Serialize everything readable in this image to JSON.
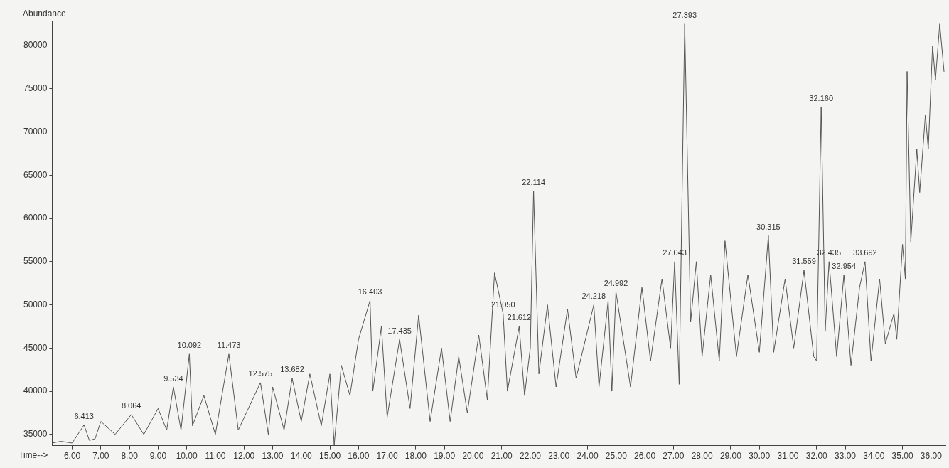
{
  "chart_data": {
    "type": "line",
    "xlabel": "Time-->",
    "ylabel": "Abundance",
    "x": [
      5.3,
      5.6,
      6.0,
      6.413,
      6.6,
      6.8,
      7.0,
      7.5,
      8.064,
      8.5,
      9.0,
      9.3,
      9.534,
      9.8,
      10.092,
      10.2,
      10.6,
      11.0,
      11.473,
      11.8,
      12.575,
      12.85,
      13.0,
      13.4,
      13.682,
      14.0,
      14.3,
      14.7,
      15.0,
      15.15,
      15.4,
      15.7,
      16.0,
      16.403,
      16.5,
      16.8,
      17.0,
      17.435,
      17.8,
      18.1,
      18.5,
      18.9,
      19.2,
      19.5,
      19.8,
      20.2,
      20.5,
      20.75,
      21.05,
      21.2,
      21.612,
      21.8,
      22.0,
      22.114,
      22.3,
      22.6,
      22.9,
      23.3,
      23.6,
      24.218,
      24.4,
      24.72,
      24.85,
      24.992,
      25.5,
      25.9,
      26.2,
      26.6,
      26.9,
      27.043,
      27.2,
      27.393,
      27.6,
      27.8,
      28.0,
      28.3,
      28.6,
      28.8,
      29.2,
      29.6,
      30.0,
      30.315,
      30.5,
      30.9,
      31.2,
      31.559,
      31.9,
      32.0,
      32.16,
      32.3,
      32.435,
      32.7,
      32.954,
      33.2,
      33.5,
      33.692,
      33.9,
      34.2,
      34.4,
      34.7,
      34.8,
      35.0,
      35.1,
      35.16,
      35.29,
      35.5,
      35.6,
      35.8,
      35.9,
      36.05,
      36.15,
      36.3,
      36.45
    ],
    "series": [
      {
        "color": "#555555",
        "values": [
          34000,
          34200,
          34000,
          36100,
          34300,
          34500,
          36500,
          35000,
          37300,
          35000,
          38000,
          35500,
          40500,
          35500,
          44300,
          36000,
          39500,
          35000,
          44300,
          35500,
          41000,
          35000,
          40500,
          35500,
          41500,
          36500,
          42000,
          36000,
          42000,
          33800,
          43000,
          39500,
          46000,
          50500,
          40000,
          47500,
          37000,
          46000,
          38000,
          48800,
          36500,
          45000,
          36500,
          44000,
          37500,
          46500,
          39000,
          53700,
          49000,
          40000,
          47500,
          39500,
          45000,
          63200,
          42000,
          50000,
          40500,
          49500,
          41500,
          50000,
          40500,
          50500,
          40000,
          51500,
          40500,
          52000,
          43500,
          53000,
          45000,
          55000,
          40800,
          82500,
          48000,
          55000,
          44000,
          53500,
          43500,
          57400,
          44000,
          53500,
          44500,
          58000,
          44500,
          53000,
          45000,
          54000,
          44000,
          43500,
          72900,
          47000,
          55000,
          44000,
          53500,
          43000,
          52000,
          55000,
          43500,
          53000,
          45500,
          49000,
          46000,
          57000,
          53000,
          77000,
          57300,
          68000,
          63000,
          72000,
          68000,
          80000,
          76000,
          82500,
          77000
        ]
      }
    ],
    "xlim": [
      5.3,
      36.5
    ],
    "ylim": [
      33700,
      82800
    ],
    "xticks": [
      {
        "value": 6,
        "label": "6.00"
      },
      {
        "value": 7,
        "label": "7.00"
      },
      {
        "value": 8,
        "label": "8.00"
      },
      {
        "value": 9,
        "label": "9.00"
      },
      {
        "value": 10,
        "label": "10.00"
      },
      {
        "value": 11,
        "label": "11.00"
      },
      {
        "value": 12,
        "label": "12.00"
      },
      {
        "value": 13,
        "label": "13.00"
      },
      {
        "value": 14,
        "label": "14.00"
      },
      {
        "value": 15,
        "label": "15.00"
      },
      {
        "value": 16,
        "label": "16.00"
      },
      {
        "value": 17,
        "label": "17.00"
      },
      {
        "value": 18,
        "label": "18.00"
      },
      {
        "value": 19,
        "label": "19.00"
      },
      {
        "value": 20,
        "label": "20.00"
      },
      {
        "value": 21,
        "label": "21.00"
      },
      {
        "value": 22,
        "label": "22.00"
      },
      {
        "value": 23,
        "label": "23.00"
      },
      {
        "value": 24,
        "label": "24.00"
      },
      {
        "value": 25,
        "label": "25.00"
      },
      {
        "value": 26,
        "label": "26.00"
      },
      {
        "value": 27,
        "label": "27.00"
      },
      {
        "value": 28,
        "label": "28.00"
      },
      {
        "value": 29,
        "label": "29.00"
      },
      {
        "value": 30,
        "label": "30.00"
      },
      {
        "value": 31,
        "label": "31.00"
      },
      {
        "value": 32,
        "label": "32.00"
      },
      {
        "value": 33,
        "label": "33.00"
      },
      {
        "value": 34,
        "label": "34.00"
      },
      {
        "value": 35,
        "label": "35.00"
      },
      {
        "value": 36,
        "label": "36.00"
      }
    ],
    "yticks": [
      35000,
      40000,
      45000,
      50000,
      55000,
      60000,
      65000,
      70000,
      75000,
      80000
    ],
    "grid": false,
    "legend": false,
    "marker": "none",
    "line_style": "solid",
    "annotations": [
      {
        "text": "6.413",
        "x": 6.413,
        "y": 36100
      },
      {
        "text": "8.064",
        "x": 8.064,
        "y": 37300
      },
      {
        "text": "9.534",
        "x": 9.534,
        "y": 40500
      },
      {
        "text": "10.092",
        "x": 10.092,
        "y": 44300
      },
      {
        "text": "11.473",
        "x": 11.473,
        "y": 44300
      },
      {
        "text": "12.575",
        "x": 12.575,
        "y": 41000
      },
      {
        "text": "13.682",
        "x": 13.682,
        "y": 41500
      },
      {
        "text": "16.403",
        "x": 16.403,
        "y": 50500
      },
      {
        "text": "17.435",
        "x": 17.435,
        "y": 46000
      },
      {
        "text": "21.050",
        "x": 21.05,
        "y": 49000
      },
      {
        "text": "21.612",
        "x": 21.612,
        "y": 47500
      },
      {
        "text": "22.114",
        "x": 22.114,
        "y": 63200
      },
      {
        "text": "24.218",
        "x": 24.218,
        "y": 50000
      },
      {
        "text": "24.992",
        "x": 24.992,
        "y": 51500
      },
      {
        "text": "27.043",
        "x": 27.043,
        "y": 55000
      },
      {
        "text": "27.393",
        "x": 27.393,
        "y": 82500
      },
      {
        "text": "30.315",
        "x": 30.315,
        "y": 58000
      },
      {
        "text": "31.559",
        "x": 31.559,
        "y": 54000
      },
      {
        "text": "32.160",
        "x": 32.16,
        "y": 72900
      },
      {
        "text": "32.435",
        "x": 32.435,
        "y": 55000
      },
      {
        "text": "32.954",
        "x": 32.954,
        "y": 53500
      },
      {
        "text": "33.692",
        "x": 33.692,
        "y": 55000
      }
    ]
  }
}
